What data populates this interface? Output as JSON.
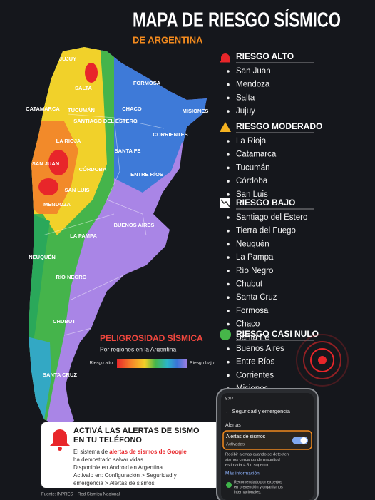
{
  "header": {
    "title": "MAPA DE RIESGO SÍSMICO",
    "subtitle": "DE ARGENTINA"
  },
  "risk_groups": [
    {
      "name": "RIESGO ALTO",
      "provinces": [
        "San Juan",
        "Mendoza",
        "Salta",
        "Jujuy"
      ]
    },
    {
      "name": "RIESGO MODERADO",
      "provinces": [
        "La Rioja",
        "Catamarca",
        "Tucumán",
        "Córdoba",
        "San Luis"
      ]
    },
    {
      "name": "RIESGO BAJO",
      "provinces": [
        "Santiago del Estero",
        "Tierra del Fuego",
        "Neuquén",
        "La Pampa",
        "Río Negro",
        "Chubut",
        "Santa Cruz",
        "Formosa",
        "Chaco",
        "Santa Fe"
      ]
    },
    {
      "name": "RIESGO CASI NULO",
      "provinces": [
        "Buenos Aires",
        "Entre Ríos",
        "Corrientes",
        "Misiones"
      ]
    }
  ],
  "map_labels": [
    "JUJUY",
    "SALTA",
    "FORMOSA",
    "CATAMARCA",
    "TUCUMÁN",
    "SANTIAGO DEL ESTERO",
    "CHACO",
    "MISIONES",
    "CORRIENTES",
    "LA RIOJA",
    "SANTA FE",
    "SAN JUAN",
    "CÓRDOBA",
    "ENTRE RÍOS",
    "SAN LUIS",
    "MENDOZA",
    "BUENOS AIRES",
    "LA PAMPA",
    "NEUQUÉN",
    "RÍO NEGRO",
    "CHUBUT",
    "SANTA CRUZ"
  ],
  "legend": {
    "title": "PELIGROSIDAD SÍSMICA",
    "subtitle": "Por regiones en la Argentina",
    "high": "Riesgo alto",
    "low": "Riesgo bajo"
  },
  "alert_box": {
    "title_line1": "ACTIVÁ LAS ALERTAS DE SISMO",
    "title_line2": "EN TU TELÉFONO",
    "body_prefix": "El sistema de ",
    "body_highlight": "alertas de sismos de Google",
    "body_lines": [
      "ha demostrado salvar vidas.",
      "Disponible en Android en Argentina.",
      "Activalo en: Configuración > Seguridad y",
      "emergencia > Alertas de sismos"
    ]
  },
  "phone": {
    "time": "8:07",
    "screen_title": "Seguridad y emergencia",
    "section": "Alertas",
    "setting": "Alertas de sismos",
    "setting_state": "Activadas",
    "description_lines": [
      "Recibir alertas cuando se detecten",
      "sismos cercanos de magnitud",
      "estimada 4.5 o superior."
    ],
    "link": "Más información",
    "recommendation_lines": [
      "Recomendado por expertos",
      "en prevención y organismos",
      "internacionales."
    ]
  },
  "source": "Fuente: INPRES – Red Sísmica Nacional"
}
